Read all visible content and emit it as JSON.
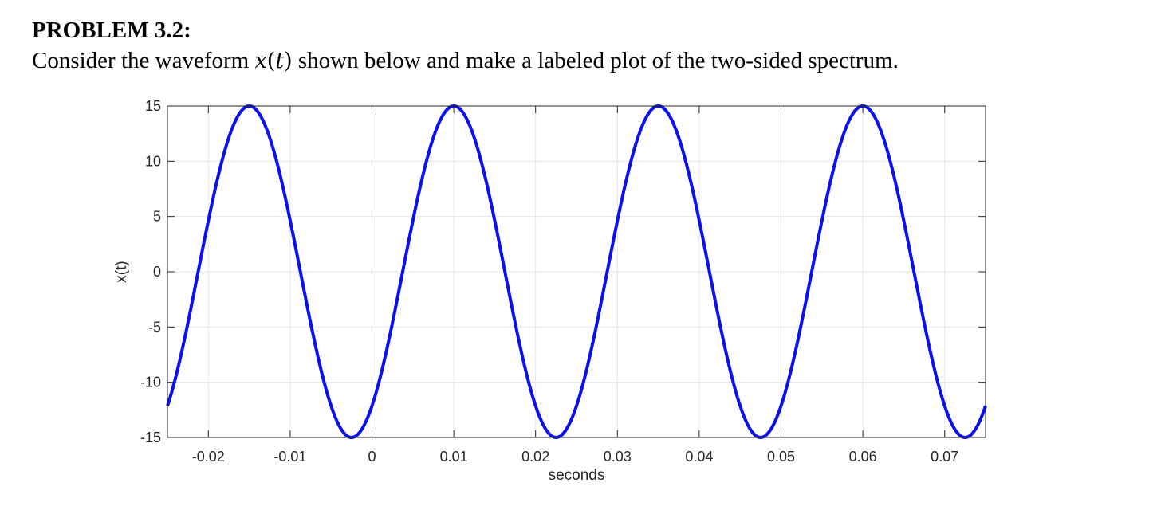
{
  "problem": {
    "title": "PROBLEM 3.2:",
    "statement_before": "Consider the waveform ",
    "statement_var": "x",
    "statement_arg_open": "(",
    "statement_arg": "t",
    "statement_arg_close": ")",
    "statement_after": " shown below and make a labeled plot of the two-sided spectrum."
  },
  "chart_data": {
    "type": "line",
    "title": "",
    "xlabel": "seconds",
    "ylabel": "x(t)",
    "xlim": [
      -0.025,
      0.075
    ],
    "ylim": [
      -15,
      15
    ],
    "xticks": [
      -0.02,
      -0.01,
      0,
      0.01,
      0.02,
      0.03,
      0.04,
      0.05,
      0.06,
      0.07
    ],
    "xtick_labels": [
      "-0.02",
      "-0.01",
      "0",
      "0.01",
      "0.02",
      "0.03",
      "0.04",
      "0.05",
      "0.06",
      "0.07"
    ],
    "yticks": [
      -15,
      -10,
      -5,
      0,
      5,
      10,
      15
    ],
    "ytick_labels": [
      "-15",
      "-10",
      "-5",
      "0",
      "5",
      "10",
      "15"
    ],
    "grid": true,
    "series": [
      {
        "color": "#0a10f0",
        "function": "15*cos(2*pi*40*(t-0.01))",
        "amplitude": 15,
        "frequency_hz": 40,
        "peak_time": 0.01,
        "x": [
          -0.025,
          -0.02,
          -0.015,
          -0.0025,
          0.01,
          0.0225,
          0.035,
          0.0475,
          0.06,
          0.0725,
          0.075
        ],
        "y": [
          -12.1,
          4.6,
          15,
          -15,
          15,
          -15,
          15,
          -15,
          15,
          -15,
          -12.1
        ]
      }
    ]
  }
}
